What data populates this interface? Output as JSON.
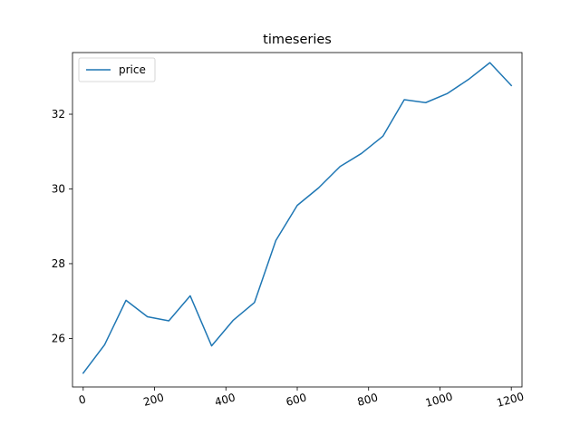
{
  "chart_data": {
    "type": "line",
    "title": "timeseries",
    "xlabel": "",
    "ylabel": "",
    "xlim": [
      -30,
      1230
    ],
    "ylim": [
      24.7,
      33.65
    ],
    "x_ticks": [
      0,
      200,
      400,
      600,
      800,
      1000,
      1200
    ],
    "y_ticks": [
      26,
      28,
      30,
      32
    ],
    "grid": false,
    "legend_position": "top-left",
    "series": [
      {
        "name": "price",
        "color": "#1f77b4",
        "x": [
          0,
          60,
          120,
          180,
          240,
          300,
          360,
          420,
          480,
          540,
          600,
          660,
          720,
          780,
          840,
          900,
          960,
          1020,
          1080,
          1140,
          1200
        ],
        "y": [
          25.07,
          25.83,
          27.02,
          26.58,
          26.47,
          27.14,
          25.8,
          26.48,
          26.96,
          28.62,
          29.56,
          30.03,
          30.6,
          30.95,
          31.41,
          32.39,
          32.31,
          32.55,
          32.93,
          33.38,
          32.77
        ]
      }
    ]
  }
}
